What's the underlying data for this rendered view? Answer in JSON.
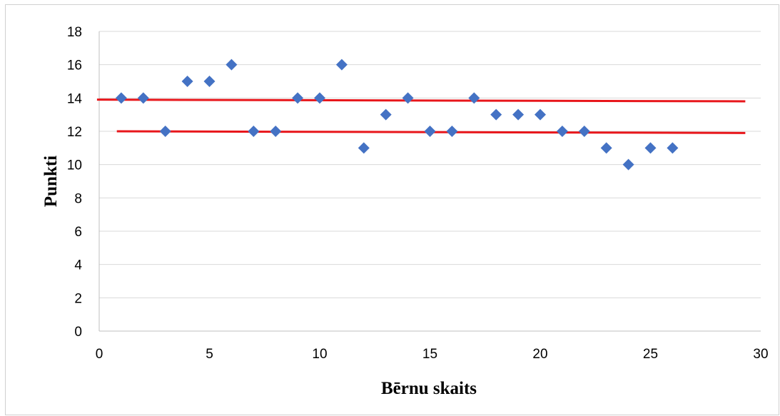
{
  "chart_data": {
    "type": "scatter",
    "title": "",
    "xlabel": "Bērnu skaits",
    "ylabel": "Punkti",
    "xlim": [
      0,
      30
    ],
    "ylim": [
      0,
      18
    ],
    "x_ticks": [
      "0",
      "5",
      "10",
      "15",
      "20",
      "25",
      "30"
    ],
    "y_ticks": [
      "0",
      "2",
      "4",
      "6",
      "8",
      "10",
      "12",
      "14",
      "16",
      "18"
    ],
    "grid": "horizontal",
    "legend": "none",
    "series": [
      {
        "marker": "diamond",
        "color": "#4472C4",
        "x": [
          1,
          2,
          3,
          4,
          5,
          6,
          7,
          8,
          9,
          10,
          11,
          12,
          13,
          14,
          15,
          16,
          17,
          18,
          19,
          20,
          21,
          22,
          23,
          24,
          25,
          26
        ],
        "y": [
          14,
          14,
          12,
          15,
          15,
          16,
          12,
          12,
          14,
          14,
          16,
          11,
          13,
          14,
          12,
          12,
          14,
          13,
          13,
          13,
          12,
          12,
          11,
          10,
          11,
          11
        ]
      }
    ],
    "reference_lines": [
      {
        "color": "#E8161B",
        "x": [
          -0.1,
          29.3
        ],
        "y": [
          13.9,
          13.8
        ]
      },
      {
        "color": "#E8161B",
        "x": [
          0.8,
          29.3
        ],
        "y": [
          12.0,
          11.9
        ]
      }
    ]
  }
}
